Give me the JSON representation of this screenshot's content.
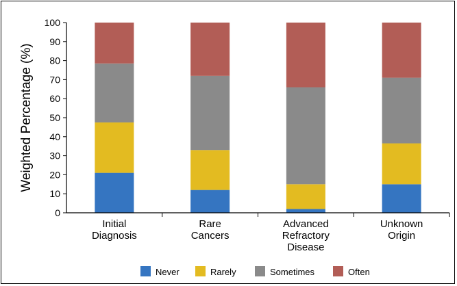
{
  "chart_data": {
    "type": "bar",
    "stacked": true,
    "categories": [
      [
        "Initial",
        "Diagnosis"
      ],
      [
        "Rare",
        "Cancers"
      ],
      [
        "Advanced",
        "Refractory",
        "Disease"
      ],
      [
        "Unknown",
        "Origin"
      ]
    ],
    "series": [
      {
        "name": "Never",
        "color": "#3575c1",
        "values": [
          21,
          12,
          2,
          15
        ]
      },
      {
        "name": "Rarely",
        "color": "#e3bb21",
        "values": [
          26.5,
          21,
          13,
          21.5
        ]
      },
      {
        "name": "Sometimes",
        "color": "#8a8a8a",
        "values": [
          31,
          39,
          51,
          34.5
        ]
      },
      {
        "name": "Often",
        "color": "#b25d56",
        "values": [
          21.5,
          28,
          34,
          29
        ]
      }
    ],
    "ylabel": "Weighted Percentage (%)",
    "xlabel": "",
    "ylim": [
      0,
      100
    ],
    "yticks": [
      0,
      10,
      20,
      30,
      40,
      50,
      60,
      70,
      80,
      90,
      100
    ],
    "grid": false,
    "legend_position": "bottom"
  }
}
